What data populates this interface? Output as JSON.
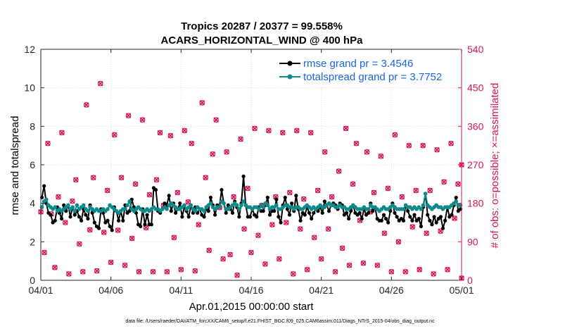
{
  "chart_data": {
    "type": "line",
    "title": "Tropics 20287 / 20377 = 99.558%",
    "subtitle": "ACARS_HORIZONTAL_WIND @ 400 hPa",
    "xlabel": "Apr.01,2015 00:00:00 start",
    "ylabel_left": "rmse and totalspread",
    "ylabel_right": "# of obs: o=possible; ×=assimilated",
    "footer": "data file: /Users/raeder/DAI/ATM_forcXX/CAM6_setup/f.e21.FHIST_BGC.f09_025.CAM6assim.011/Diags_NTrS_2015-04/obs_diag_output.nc",
    "x_range_days": [
      0,
      30
    ],
    "x_tick_values": [
      0,
      5,
      10,
      15,
      20,
      25,
      30
    ],
    "x_tick_labels": [
      "04/01",
      "04/06",
      "04/11",
      "04/16",
      "04/21",
      "04/26",
      "05/01"
    ],
    "ylim_left": [
      0,
      12
    ],
    "yticks_left": [
      "0",
      "2",
      "4",
      "6",
      "8",
      "10",
      "12"
    ],
    "ylim_right": [
      0,
      540
    ],
    "yticks_right": [
      "0",
      "90",
      "180",
      "270",
      "360",
      "450",
      "540"
    ],
    "colors": {
      "rmse": "#000000",
      "totalspread": "#0e8a8a",
      "obs": "#d6155c",
      "right_axis": "#d6155c"
    },
    "legend": {
      "placement": "top-right",
      "entries": [
        "rmse grand pr = 3.4546",
        "totalspread grand pr = 3.7752"
      ]
    },
    "series": [
      {
        "name": "rmse",
        "axis": "left",
        "values": [
          4.3,
          4.9,
          4.0,
          3.5,
          3.4,
          3.0,
          3.1,
          3.8,
          3.5,
          3.2,
          3.9,
          3.6,
          3.9,
          3.3,
          3.8,
          3.4,
          3.6,
          3.3,
          3.1,
          3.7,
          3.4,
          3.2,
          3.9,
          3.5,
          3.0,
          2.8,
          2.7,
          3.7,
          3.5,
          3.0,
          3.1,
          2.8,
          2.6,
          3.8,
          3.6,
          3.1,
          3.6,
          3.1,
          3.9,
          3.5,
          3.6,
          4.2,
          3.8,
          3.5,
          2.9,
          2.8,
          3.7,
          2.9,
          3.4,
          2.9,
          2.9,
          4.8,
          4.7,
          3.6,
          3.5,
          3.7,
          4.0,
          3.9,
          4.4,
          3.6,
          4.0,
          3.5,
          3.7,
          4.0,
          3.3,
          3.8,
          3.6,
          3.3,
          3.9,
          3.5,
          3.8,
          3.5,
          3.7,
          3.4,
          3.3,
          3.7,
          3.6,
          4.3,
          3.9,
          3.4,
          3.9,
          3.8,
          4.7,
          4.0,
          3.5,
          3.9,
          3.7,
          3.5,
          4.1,
          3.8,
          3.3,
          4.0,
          5.4,
          3.9,
          3.3,
          3.3,
          3.7,
          3.4,
          3.3,
          3.8,
          3.6,
          3.6,
          3.9,
          4.3,
          3.4,
          3.6,
          3.6,
          4.2,
          3.3,
          3.0,
          3.9,
          4.3,
          3.7,
          3.4,
          4.0,
          3.6,
          4.4,
          3.7,
          3.1,
          3.5,
          3.4,
          3.8,
          3.5,
          3.2,
          3.5,
          3.7,
          3.6,
          3.8,
          3.5,
          4.1,
          3.9,
          3.6,
          3.9,
          4.0,
          3.9,
          3.7,
          4.0,
          3.9,
          3.4,
          3.5,
          3.2,
          3.6,
          3.9,
          3.5,
          3.4,
          3.5,
          3.2,
          3.7,
          3.4,
          3.5,
          4.0,
          3.6,
          3.8,
          3.2,
          3.1,
          3.1,
          3.4,
          3.2,
          3.0,
          3.6,
          4.0,
          3.5,
          3.3,
          3.1,
          3.2,
          3.1,
          3.9,
          3.6,
          3.3,
          3.1,
          3.4,
          3.1,
          3.2,
          2.8,
          3.8,
          4.5,
          3.4,
          3.1,
          2.9,
          3.3,
          3.0,
          3.2,
          3.3,
          2.7,
          3.1,
          3.8,
          3.3,
          3.4,
          3.9,
          4.3,
          3.6,
          3.7
        ]
      },
      {
        "name": "totalspread",
        "axis": "left",
        "values": [
          3.8,
          4.1,
          4.2,
          3.9,
          3.8,
          3.7,
          3.8,
          3.6,
          3.7,
          3.6,
          3.7,
          3.8,
          3.9,
          3.7,
          3.8,
          3.6,
          3.9,
          3.7,
          3.8,
          3.9,
          3.7,
          3.6,
          3.8,
          3.7,
          3.6,
          3.7,
          3.6,
          3.6,
          3.7,
          3.6,
          3.7,
          3.9,
          3.8,
          3.7,
          3.6,
          3.5,
          3.6,
          3.7,
          3.7,
          3.9,
          4.1,
          3.7,
          3.6,
          3.7,
          3.8,
          3.7,
          3.6,
          3.6,
          3.7,
          3.6,
          3.7,
          3.8,
          3.7,
          3.7,
          3.6,
          3.7,
          3.8,
          3.7,
          3.9,
          4.0,
          3.9,
          3.8,
          3.7,
          3.7,
          3.8,
          3.9,
          3.7,
          3.8,
          3.9,
          3.7,
          3.6,
          3.8,
          3.7,
          3.7,
          3.6,
          3.8,
          3.9,
          4.0,
          3.8,
          3.7,
          3.8,
          3.8,
          4.1,
          4.0,
          3.7,
          3.7,
          3.8,
          3.9,
          4.0,
          3.9,
          3.7,
          3.9,
          4.1,
          3.9,
          3.8,
          3.8,
          3.7,
          3.8,
          3.8,
          3.7,
          3.9,
          3.8,
          4.0,
          3.9,
          3.7,
          3.8,
          3.8,
          3.9,
          3.7,
          3.7,
          3.8,
          3.9,
          3.9,
          3.8,
          3.8,
          3.7,
          3.8,
          3.8,
          3.7,
          3.7,
          3.8,
          3.9,
          3.8,
          3.7,
          3.8,
          3.7,
          3.8,
          3.9,
          3.8,
          3.8,
          3.9,
          4.0,
          3.9,
          3.9,
          3.8,
          3.8,
          3.9,
          3.8,
          3.8,
          3.7,
          3.7,
          3.8,
          3.9,
          3.8,
          3.7,
          3.7,
          3.7,
          3.8,
          3.7,
          3.7,
          3.9,
          3.8,
          3.8,
          3.7,
          3.6,
          3.7,
          3.8,
          3.7,
          3.7,
          3.8,
          3.9,
          3.8,
          3.7,
          3.7,
          3.7,
          3.7,
          3.9,
          3.8,
          3.8,
          3.7,
          3.8,
          3.7,
          3.8,
          3.7,
          3.9,
          4.5,
          3.9,
          3.8,
          3.7,
          3.8,
          3.9,
          3.8,
          3.8,
          3.7,
          3.8,
          3.8,
          3.8,
          3.9,
          4.0,
          4.1,
          3.9,
          3.9
        ]
      },
      {
        "name": "obs_count",
        "axis": "right",
        "marker": "o and × overlaid",
        "points": [
          [
            0.0,
            160
          ],
          [
            0.25,
            65
          ],
          [
            0.5,
            320
          ],
          [
            0.75,
            155
          ],
          [
            1.0,
            30
          ],
          [
            1.25,
            195
          ],
          [
            1.5,
            345
          ],
          [
            1.75,
            135
          ],
          [
            2.0,
            15
          ],
          [
            2.25,
            185
          ],
          [
            2.5,
            235
          ],
          [
            2.75,
            85
          ],
          [
            3.0,
            20
          ],
          [
            3.25,
            410
          ],
          [
            3.5,
            118
          ],
          [
            3.75,
            240
          ],
          [
            4.0,
            22
          ],
          [
            4.25,
            460
          ],
          [
            4.5,
            112
          ],
          [
            4.75,
            210
          ],
          [
            5.0,
            42
          ],
          [
            5.25,
            340
          ],
          [
            5.5,
            117
          ],
          [
            5.75,
            240
          ],
          [
            6.0,
            35
          ],
          [
            6.25,
            385
          ],
          [
            6.5,
            98
          ],
          [
            6.75,
            225
          ],
          [
            7.0,
            20
          ],
          [
            7.25,
            375
          ],
          [
            7.5,
            123
          ],
          [
            7.75,
            200
          ],
          [
            8.0,
            20
          ],
          [
            8.25,
            235
          ],
          [
            8.5,
            345
          ],
          [
            8.75,
            175
          ],
          [
            9.0,
            20
          ],
          [
            9.25,
            338
          ],
          [
            9.5,
            100
          ],
          [
            9.75,
            205
          ],
          [
            10.0,
            25
          ],
          [
            10.25,
            350
          ],
          [
            10.5,
            183
          ],
          [
            10.75,
            320
          ],
          [
            11.0,
            22
          ],
          [
            11.25,
            130
          ],
          [
            11.5,
            415
          ],
          [
            11.75,
            240
          ],
          [
            12.0,
            70
          ],
          [
            12.25,
            295
          ],
          [
            12.5,
            375
          ],
          [
            12.75,
            170
          ],
          [
            13.0,
            50
          ],
          [
            13.25,
            300
          ],
          [
            13.5,
            60
          ],
          [
            13.75,
            195
          ],
          [
            14.0,
            12
          ],
          [
            14.25,
            330
          ],
          [
            14.5,
            120
          ],
          [
            14.75,
            215
          ],
          [
            15.0,
            65
          ],
          [
            15.25,
            355
          ],
          [
            15.5,
            105
          ],
          [
            15.75,
            175
          ],
          [
            16.0,
            38
          ],
          [
            16.25,
            350
          ],
          [
            16.5,
            130
          ],
          [
            16.75,
            195
          ],
          [
            17.0,
            50
          ],
          [
            17.25,
            345
          ],
          [
            17.5,
            135
          ],
          [
            17.75,
            205
          ],
          [
            18.0,
            15
          ],
          [
            18.25,
            350
          ],
          [
            18.5,
            120
          ],
          [
            18.75,
            190
          ],
          [
            19.0,
            25
          ],
          [
            19.25,
            345
          ],
          [
            19.5,
            100
          ],
          [
            19.75,
            210
          ],
          [
            20.0,
            50
          ],
          [
            20.25,
            300
          ],
          [
            20.5,
            120
          ],
          [
            20.75,
            195
          ],
          [
            21.0,
            20
          ],
          [
            21.25,
            255
          ],
          [
            21.5,
            75
          ],
          [
            21.75,
            355
          ],
          [
            22.0,
            35
          ],
          [
            22.25,
            225
          ],
          [
            22.5,
            320
          ],
          [
            22.75,
            140
          ],
          [
            23.0,
            40
          ],
          [
            23.25,
            300
          ],
          [
            23.5,
            160
          ],
          [
            23.75,
            205
          ],
          [
            24.0,
            35
          ],
          [
            24.25,
            290
          ],
          [
            24.5,
            110
          ],
          [
            24.75,
            215
          ],
          [
            25.0,
            20
          ],
          [
            25.25,
            340
          ],
          [
            25.5,
            90
          ],
          [
            25.75,
            195
          ],
          [
            26.0,
            20
          ],
          [
            26.25,
            315
          ],
          [
            26.5,
            125
          ],
          [
            26.75,
            210
          ],
          [
            27.0,
            25
          ],
          [
            27.25,
            315
          ],
          [
            27.5,
            110
          ],
          [
            27.75,
            210
          ],
          [
            28.0,
            15
          ],
          [
            28.25,
            305
          ],
          [
            28.5,
            115
          ],
          [
            28.75,
            230
          ],
          [
            29.0,
            25
          ],
          [
            29.25,
            320
          ],
          [
            29.5,
            145
          ],
          [
            29.75,
            225
          ],
          [
            30.0,
            5
          ],
          [
            30.0,
            270
          ]
        ]
      }
    ]
  }
}
